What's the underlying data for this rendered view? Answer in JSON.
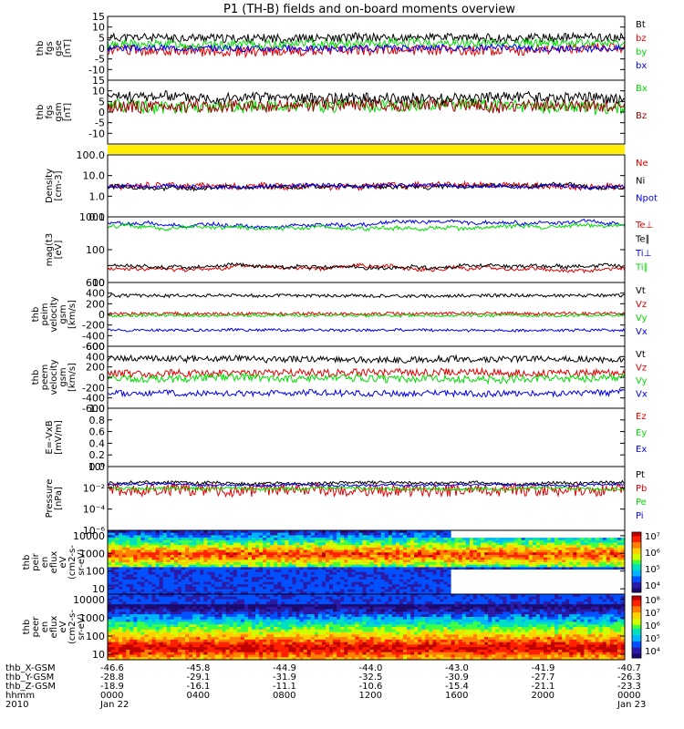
{
  "title": "P1 (TH-B) fields and on-board moments overview",
  "chart_data": [
    {
      "id": "fgs_gse",
      "type": "line",
      "ylabel": [
        "thb",
        "fgs",
        "gse",
        "[nT]"
      ],
      "ylim": [
        -15,
        15
      ],
      "yticks": [
        15,
        10,
        5,
        0,
        -5,
        -10
      ],
      "series": [
        {
          "name": "Bt",
          "color": "#000000",
          "base": 5,
          "noise": 2,
          "seed": 11
        },
        {
          "name": "bz",
          "color": "#e00000",
          "base": -1,
          "noise": 2.5,
          "seed": 12
        },
        {
          "name": "by",
          "color": "#00dd00",
          "base": 2,
          "noise": 2,
          "seed": 13
        },
        {
          "name": "bx",
          "color": "#0000ee",
          "base": 0,
          "noise": 1.5,
          "seed": 14
        }
      ]
    },
    {
      "id": "fgs_gsm",
      "type": "line",
      "ylabel": [
        "thb",
        "fgs",
        "gsm",
        "[nT]"
      ],
      "ylim": [
        -15,
        15
      ],
      "yticks": [
        15,
        10,
        5,
        0,
        -5,
        -10
      ],
      "series": [
        {
          "name": "Bx",
          "color": "#00dd00",
          "base": 3,
          "noise": 3,
          "seed": 21
        },
        {
          "name": "Bz",
          "color": "#990000",
          "base": 3,
          "noise": 3,
          "seed": 22
        },
        {
          "name": "",
          "color": "#000000",
          "base": 7,
          "noise": 2.5,
          "seed": 23
        }
      ]
    },
    {
      "id": "status_bar",
      "type": "bar",
      "color": "#ffee00"
    },
    {
      "id": "density",
      "type": "line",
      "log": true,
      "ylabel": [
        "Density",
        "[cm-3]"
      ],
      "ylim": [
        0.1,
        100
      ],
      "yticks": [
        100.0,
        10.0,
        1.0,
        0.1
      ],
      "ytick_labels": [
        "100.0",
        "10.0",
        "1.0",
        "0.1"
      ],
      "series": [
        {
          "name": "Ne",
          "color": "#e00000",
          "base": 3,
          "noise": 0.15,
          "seed": 31
        },
        {
          "name": "Ni",
          "color": "#000000",
          "base": 3,
          "noise": 0.1,
          "seed": 32
        },
        {
          "name": "Npot",
          "color": "#0000ee",
          "base": 3,
          "noise": 0.08,
          "seed": 33
        }
      ]
    },
    {
      "id": "temperature",
      "type": "line",
      "log": true,
      "ylabel": [
        "mag(t3",
        "[eV]"
      ],
      "ylim": [
        10,
        1000
      ],
      "yticks": [
        1000,
        100,
        10
      ],
      "ytick_labels": [
        "1000",
        "100",
        "10"
      ],
      "series": [
        {
          "name": "Te⊥",
          "color": "#e00000",
          "base": 25,
          "noise": 0.05,
          "seed": 41
        },
        {
          "name": "Te∥",
          "color": "#000000",
          "base": 30,
          "noise": 0.05,
          "seed": 42
        },
        {
          "name": "Ti⊥",
          "color": "#0000ee",
          "base": 600,
          "noise": 0.05,
          "seed": 43
        },
        {
          "name": "Ti∥",
          "color": "#00dd00",
          "base": 500,
          "noise": 0.05,
          "seed": 44
        }
      ]
    },
    {
      "id": "peim_velocity",
      "type": "line",
      "ylabel": [
        "thb",
        "peim",
        "velocity",
        "gsm",
        "[km/s]"
      ],
      "ylim": [
        -600,
        600
      ],
      "yticks": [
        600,
        400,
        200,
        0,
        -200,
        -400,
        -600
      ],
      "series": [
        {
          "name": "Vt",
          "color": "#000000",
          "base": 350,
          "noise": 30,
          "seed": 51
        },
        {
          "name": "Vz",
          "color": "#e00000",
          "base": 10,
          "noise": 30,
          "seed": 52
        },
        {
          "name": "Vy",
          "color": "#00dd00",
          "base": -20,
          "noise": 25,
          "seed": 53
        },
        {
          "name": "Vx",
          "color": "#0000ee",
          "base": -300,
          "noise": 25,
          "seed": 54
        }
      ]
    },
    {
      "id": "peem_velocity",
      "type": "line",
      "ylabel": [
        "thb",
        "peem",
        "velocity",
        "gsm",
        "[km/s]"
      ],
      "ylim": [
        -600,
        600
      ],
      "yticks": [
        600,
        400,
        200,
        0,
        -200,
        -400,
        -600
      ],
      "series": [
        {
          "name": "Vt",
          "color": "#000000",
          "base": 350,
          "noise": 60,
          "seed": 61
        },
        {
          "name": "Vz",
          "color": "#e00000",
          "base": 80,
          "noise": 70,
          "seed": 62
        },
        {
          "name": "Vy",
          "color": "#00dd00",
          "base": -20,
          "noise": 70,
          "seed": 63
        },
        {
          "name": "Vx",
          "color": "#0000ee",
          "base": -300,
          "noise": 60,
          "seed": 64
        }
      ]
    },
    {
      "id": "efield",
      "type": "line",
      "ylabel": [
        "E=-VxB",
        "[mV/m]"
      ],
      "ylim": [
        0.0,
        1.0
      ],
      "yticks": [
        1.0,
        0.8,
        0.6,
        0.4,
        0.2,
        0.0
      ],
      "ytick_labels": [
        "1.0",
        "0.8",
        "0.6",
        "0.4",
        "0.2",
        "0.0"
      ],
      "series": [
        {
          "name": "Ez",
          "color": "#e00000"
        },
        {
          "name": "Ey",
          "color": "#00dd00"
        },
        {
          "name": "Ex",
          "color": "#0000ee"
        }
      ]
    },
    {
      "id": "pressure",
      "type": "line",
      "log": true,
      "ylabel": [
        "Pressure",
        "[nPa]"
      ],
      "ylim": [
        1e-06,
        1
      ],
      "yticks": [
        1,
        0.01,
        0.0001,
        1e-06
      ],
      "ytick_labels": [
        "10⁰",
        "10⁻²",
        "10⁻⁴",
        "10⁻⁶"
      ],
      "series": [
        {
          "name": "Pt",
          "color": "#000000",
          "base": 0.03,
          "noise": 0.15,
          "seed": 71
        },
        {
          "name": "Pb",
          "color": "#e00000",
          "base": 0.006,
          "noise": 0.6,
          "seed": 72
        },
        {
          "name": "Pe",
          "color": "#00dd00",
          "base": 0.008,
          "noise": 0.15,
          "seed": 73
        },
        {
          "name": "Pi",
          "color": "#0000ee",
          "base": 0.02,
          "noise": 0.1,
          "seed": 74
        }
      ]
    },
    {
      "id": "peir_spec",
      "type": "heatmap",
      "log": true,
      "ylabel": [
        "thb",
        "peir",
        "en",
        "eflux",
        "eV",
        "(cm2-s-",
        "sr-eV)"
      ],
      "ylim": [
        5,
        20000
      ],
      "yticks": [
        10000,
        1000,
        100,
        10
      ],
      "ytick_labels": [
        "10000",
        "1000",
        "100",
        "10"
      ],
      "colorbar": {
        "range": [
          1000,
          10000000
        ],
        "tick_labels": [
          "10⁷",
          "10⁶",
          "10⁵",
          "10⁴"
        ]
      },
      "gap_x_range": [
        "1536",
        "2400"
      ],
      "seed": 81
    },
    {
      "id": "peer_spec",
      "type": "heatmap",
      "log": true,
      "ylabel": [
        "thb",
        "peer",
        "en",
        "eflux",
        "eV",
        "(cm2-s-",
        "sr-eV)"
      ],
      "ylim": [
        5,
        20000
      ],
      "yticks": [
        10000,
        1000,
        100,
        10
      ],
      "ytick_labels": [
        "10000",
        "1000",
        "100",
        "10"
      ],
      "colorbar": {
        "range": [
          1000,
          100000000
        ],
        "tick_labels": [
          "10⁸",
          "10⁷",
          "10⁶",
          "10⁵",
          "10⁴"
        ]
      },
      "seed": 91
    }
  ],
  "x_axis": {
    "rows": [
      {
        "label": "thb_X-GSM",
        "values": [
          "-46.6",
          "-45.8",
          "-44.9",
          "-44.0",
          "-43.0",
          "-41.9",
          "-40.7"
        ]
      },
      {
        "label": "thb_Y-GSM",
        "values": [
          "-28.8",
          "-29.1",
          "-31.9",
          "-32.5",
          "-30.9",
          "-27.7",
          "-26.3"
        ]
      },
      {
        "label": "thb_Z-GSM",
        "values": [
          "-18.9",
          "-16.1",
          "-11.1",
          "-10.6",
          "-15.4",
          "-21.1",
          "-23.3"
        ]
      },
      {
        "label": "hhmm",
        "values": [
          "0000",
          "0400",
          "0800",
          "1200",
          "1600",
          "2000",
          "0000"
        ]
      },
      {
        "label": "2010",
        "values": [
          "Jan 22",
          "",
          "",
          "",
          "",
          "",
          "Jan 23"
        ]
      }
    ]
  }
}
